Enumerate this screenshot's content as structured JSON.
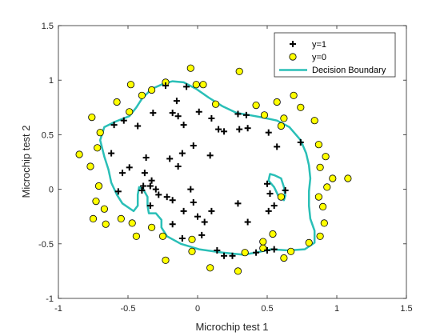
{
  "chart_data": {
    "type": "scatter",
    "xlabel": "Microchip test 1",
    "ylabel": "Microchip test 2",
    "xlim": [
      -1,
      1.5
    ],
    "ylim": [
      -1,
      1.5
    ],
    "x_ticks": [
      -1,
      -0.5,
      0,
      0.5,
      1,
      1.5
    ],
    "y_ticks": [
      -1,
      -0.5,
      0,
      0.5,
      1,
      1.5
    ],
    "x_tick_labels": [
      "-1",
      "-0.5",
      "0",
      "0.5",
      "1",
      "1.5"
    ],
    "y_tick_labels": [
      "-1",
      "-0.5",
      "0",
      "0.5",
      "1",
      "1.5"
    ],
    "grid": false,
    "legend_position": "top-right",
    "legend": [
      {
        "label": "y=1",
        "marker": "plus",
        "color": "#000000"
      },
      {
        "label": "y=0",
        "marker": "circle",
        "color": "#FFFF00"
      },
      {
        "label": "Decision Boundary",
        "marker": "line",
        "color": "#2ABFB7"
      }
    ],
    "series": [
      {
        "name": "y=1",
        "marker": "plus",
        "color": "#000000",
        "points": [
          [
            -0.23,
            0.95
          ],
          [
            -0.08,
            0.94
          ],
          [
            -0.15,
            0.81
          ],
          [
            -0.32,
            0.7
          ],
          [
            -0.53,
            0.63
          ],
          [
            -0.6,
            0.59
          ],
          [
            -0.43,
            0.58
          ],
          [
            -0.18,
            0.7
          ],
          [
            -0.14,
            0.67
          ],
          [
            -0.1,
            0.59
          ],
          [
            0.01,
            0.71
          ],
          [
            0.1,
            0.65
          ],
          [
            0.15,
            0.55
          ],
          [
            0.19,
            0.53
          ],
          [
            0.3,
            0.55
          ],
          [
            0.29,
            0.69
          ],
          [
            0.35,
            0.68
          ],
          [
            0.36,
            0.56
          ],
          [
            0.51,
            0.52
          ],
          [
            0.57,
            0.39
          ],
          [
            0.74,
            0.43
          ],
          [
            -0.62,
            0.33
          ],
          [
            -0.37,
            0.29
          ],
          [
            -0.49,
            0.2
          ],
          [
            -0.54,
            0.15
          ],
          [
            -0.38,
            0.15
          ],
          [
            -0.2,
            0.28
          ],
          [
            -0.11,
            0.33
          ],
          [
            -0.03,
            0.4
          ],
          [
            0.09,
            0.31
          ],
          [
            0.5,
            0.05
          ],
          [
            0.63,
            -0.01
          ],
          [
            0.52,
            -0.04
          ],
          [
            -0.57,
            -0.02
          ],
          [
            -0.4,
            -0.01
          ],
          [
            -0.34,
            0.03
          ],
          [
            -0.34,
            -0.15
          ],
          [
            -0.3,
            0.0
          ],
          [
            -0.22,
            -0.07
          ],
          [
            -0.18,
            -0.1
          ],
          [
            -0.1,
            -0.2
          ],
          [
            -0.03,
            -0.12
          ],
          [
            0.1,
            -0.2
          ],
          [
            0.05,
            -0.3
          ],
          [
            -0.18,
            -0.32
          ],
          [
            0.29,
            -0.13
          ],
          [
            0.51,
            -0.2
          ],
          [
            0.55,
            -0.15
          ],
          [
            -0.39,
            0.03
          ],
          [
            -0.28,
            -0.05
          ],
          [
            0.36,
            -0.3
          ],
          [
            -0.11,
            -0.45
          ],
          [
            0.03,
            -0.42
          ],
          [
            0.14,
            -0.56
          ],
          [
            0.19,
            -0.61
          ],
          [
            0.25,
            -0.61
          ],
          [
            0.42,
            -0.58
          ],
          [
            0.5,
            -0.56
          ],
          [
            0.55,
            -0.55
          ],
          [
            -0.14,
            0.21
          ],
          [
            -0.33,
            0.08
          ],
          [
            -0.05,
            0.0
          ],
          [
            0.0,
            -0.25
          ]
        ]
      },
      {
        "name": "y=0",
        "marker": "circle",
        "color": "#FFFF00",
        "points": [
          [
            -0.05,
            1.11
          ],
          [
            0.3,
            1.08
          ],
          [
            -0.48,
            0.96
          ],
          [
            -0.01,
            0.96
          ],
          [
            0.04,
            0.96
          ],
          [
            -0.23,
            0.98
          ],
          [
            -0.33,
            0.91
          ],
          [
            -0.58,
            0.8
          ],
          [
            -0.49,
            0.71
          ],
          [
            -0.4,
            0.86
          ],
          [
            0.13,
            0.78
          ],
          [
            0.42,
            0.77
          ],
          [
            0.57,
            0.8
          ],
          [
            0.69,
            0.86
          ],
          [
            0.48,
            0.68
          ],
          [
            0.62,
            0.65
          ],
          [
            0.6,
            0.58
          ],
          [
            -0.76,
            0.66
          ],
          [
            -0.7,
            0.52
          ],
          [
            -0.72,
            0.38
          ],
          [
            -0.85,
            0.32
          ],
          [
            -0.77,
            0.21
          ],
          [
            0.74,
            0.75
          ],
          [
            0.84,
            0.63
          ],
          [
            0.87,
            0.41
          ],
          [
            0.92,
            0.3
          ],
          [
            0.88,
            0.2
          ],
          [
            0.97,
            0.1
          ],
          [
            1.08,
            0.1
          ],
          [
            -0.71,
            0.03
          ],
          [
            -0.73,
            -0.11
          ],
          [
            -0.67,
            -0.18
          ],
          [
            -0.75,
            -0.27
          ],
          [
            -0.66,
            -0.32
          ],
          [
            -0.55,
            -0.27
          ],
          [
            -0.47,
            -0.31
          ],
          [
            0.93,
            0.02
          ],
          [
            0.87,
            -0.07
          ],
          [
            0.9,
            -0.16
          ],
          [
            0.91,
            -0.31
          ],
          [
            0.88,
            -0.43
          ],
          [
            0.8,
            -0.49
          ],
          [
            -0.44,
            -0.43
          ],
          [
            -0.33,
            -0.35
          ],
          [
            -0.25,
            -0.43
          ],
          [
            0.54,
            -0.41
          ],
          [
            0.34,
            -0.58
          ],
          [
            -0.04,
            -0.46
          ],
          [
            -0.04,
            -0.57
          ],
          [
            -0.23,
            -0.65
          ],
          [
            0.09,
            -0.72
          ],
          [
            0.29,
            -0.75
          ],
          [
            0.62,
            -0.63
          ],
          [
            0.47,
            -0.48
          ],
          [
            0.67,
            -0.57
          ],
          [
            0.6,
            -0.07
          ],
          [
            0.47,
            -0.54
          ]
        ]
      },
      {
        "name": "Decision Boundary",
        "marker": "line",
        "color": "#2ABFB7",
        "paths": [
          [
            [
              -0.24,
              0.97
            ],
            [
              -0.33,
              0.92
            ],
            [
              -0.4,
              0.83
            ],
            [
              -0.44,
              0.75
            ],
            [
              -0.49,
              0.67
            ],
            [
              -0.59,
              0.62
            ],
            [
              -0.67,
              0.57
            ],
            [
              -0.7,
              0.45
            ],
            [
              -0.67,
              0.3
            ],
            [
              -0.64,
              0.18
            ],
            [
              -0.62,
              0.06
            ],
            [
              -0.58,
              -0.05
            ],
            [
              -0.54,
              -0.13
            ],
            [
              -0.46,
              -0.2
            ],
            [
              -0.43,
              -0.15
            ],
            [
              -0.43,
              -0.05
            ],
            [
              -0.42,
              0.02
            ],
            [
              -0.39,
              0.0
            ],
            [
              -0.36,
              -0.07
            ],
            [
              -0.36,
              -0.15
            ],
            [
              -0.35,
              -0.22
            ],
            [
              -0.3,
              -0.22
            ],
            [
              -0.26,
              -0.28
            ],
            [
              -0.26,
              -0.35
            ],
            [
              -0.22,
              -0.43
            ],
            [
              -0.12,
              -0.5
            ],
            [
              0.01,
              -0.55
            ],
            [
              0.18,
              -0.58
            ],
            [
              0.33,
              -0.6
            ],
            [
              0.42,
              -0.58
            ],
            [
              0.53,
              -0.55
            ],
            [
              0.65,
              -0.56
            ],
            [
              0.77,
              -0.55
            ],
            [
              0.84,
              -0.49
            ],
            [
              0.84,
              -0.38
            ],
            [
              0.81,
              -0.27
            ],
            [
              0.8,
              -0.15
            ],
            [
              0.8,
              -0.02
            ],
            [
              0.81,
              0.1
            ],
            [
              0.8,
              0.22
            ],
            [
              0.78,
              0.33
            ],
            [
              0.74,
              0.45
            ],
            [
              0.66,
              0.57
            ],
            [
              0.57,
              0.63
            ],
            [
              0.46,
              0.66
            ],
            [
              0.37,
              0.68
            ],
            [
              0.28,
              0.7
            ],
            [
              0.18,
              0.76
            ],
            [
              0.08,
              0.84
            ],
            [
              -0.01,
              0.92
            ],
            [
              -0.1,
              0.98
            ],
            [
              -0.18,
              0.99
            ],
            [
              -0.24,
              0.97
            ]
          ],
          [
            [
              0.55,
              0.13
            ],
            [
              0.6,
              0.1
            ],
            [
              0.62,
              0.02
            ],
            [
              0.63,
              -0.06
            ],
            [
              0.62,
              -0.1
            ],
            [
              0.58,
              -0.06
            ],
            [
              0.55,
              0.02
            ],
            [
              0.51,
              0.08
            ],
            [
              0.52,
              0.14
            ],
            [
              0.55,
              0.13
            ]
          ]
        ]
      }
    ]
  }
}
